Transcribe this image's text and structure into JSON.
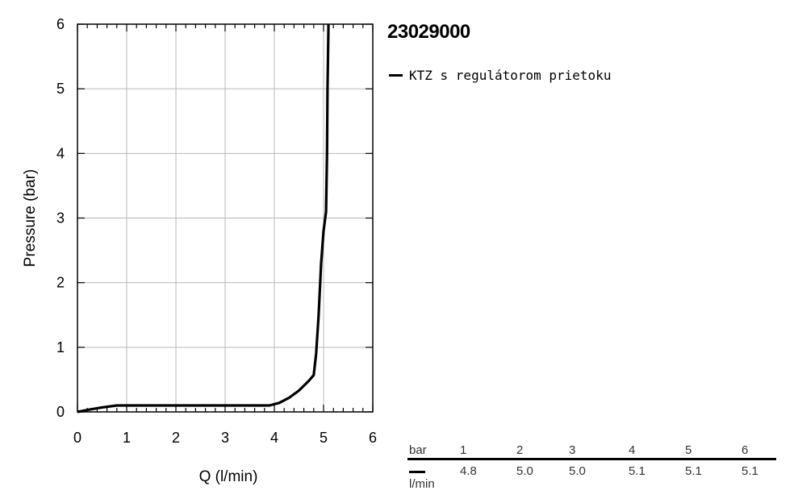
{
  "product_code": "23029000",
  "legend": {
    "label": "KTZ s regulátorom prietoku"
  },
  "chart_data": {
    "type": "line",
    "xlabel": "Q (l/min)",
    "ylabel": "Pressure (bar)",
    "xlim": [
      0,
      6
    ],
    "ylim": [
      0,
      6
    ],
    "xticks": [
      "0",
      "1",
      "2",
      "3",
      "4",
      "5",
      "6"
    ],
    "yticks": [
      "0",
      "1",
      "2",
      "3",
      "4",
      "5",
      "6"
    ],
    "grid": true,
    "series": [
      {
        "name": "KTZ s regulátorom prietoku",
        "points": [
          [
            0,
            0
          ],
          [
            0.2,
            0.03
          ],
          [
            0.5,
            0.07
          ],
          [
            0.8,
            0.1
          ],
          [
            1.0,
            0.1
          ],
          [
            2.0,
            0.1
          ],
          [
            3.0,
            0.1
          ],
          [
            3.9,
            0.1
          ],
          [
            4.1,
            0.14
          ],
          [
            4.3,
            0.22
          ],
          [
            4.5,
            0.33
          ],
          [
            4.7,
            0.48
          ],
          [
            4.8,
            0.57
          ],
          [
            4.85,
            0.9
          ],
          [
            4.9,
            1.5
          ],
          [
            4.95,
            2.3
          ],
          [
            5.0,
            2.8
          ],
          [
            5.05,
            3.1
          ],
          [
            5.07,
            4.0
          ],
          [
            5.08,
            5.0
          ],
          [
            5.1,
            6.0
          ]
        ]
      }
    ]
  },
  "flow_table": {
    "header_unit": "bar",
    "row_unit": "l/min",
    "pressures": [
      "1",
      "2",
      "3",
      "4",
      "5",
      "6"
    ],
    "flows": [
      "4.8",
      "5.0",
      "5.0",
      "5.1",
      "5.1",
      "5.1"
    ]
  }
}
